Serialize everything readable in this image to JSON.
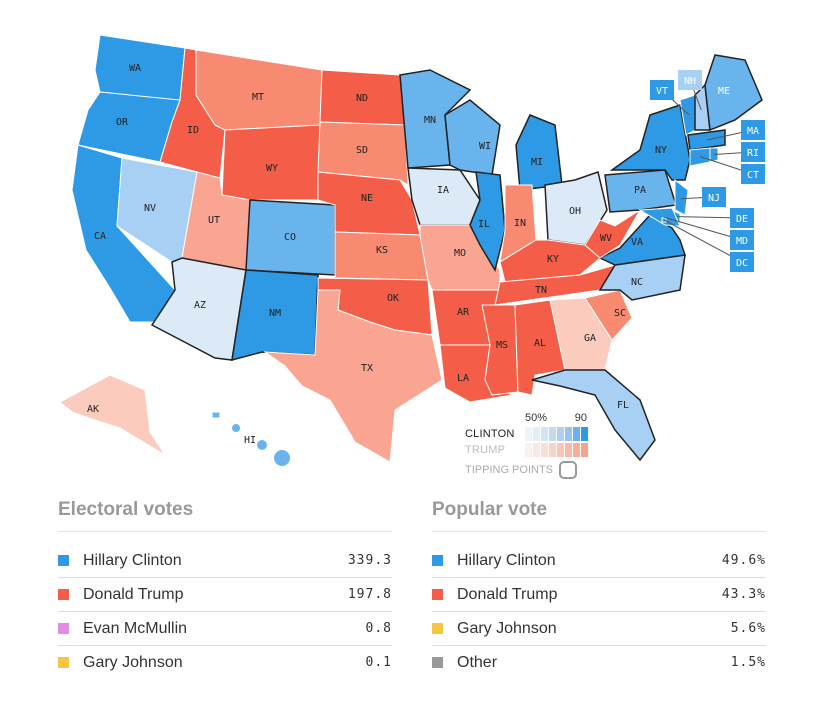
{
  "colors": {
    "D3": "#2E9AE6",
    "D2": "#6AB4EE",
    "D1": "#A8CFF4",
    "D0": "#DCEAF8",
    "R0": "#FBCBBE",
    "R1": "#F9A592",
    "R2": "#F78A70",
    "R3": "#F45E48"
  },
  "map": {
    "states": {
      "WA": "D3",
      "OR": "D3",
      "CA": "D3",
      "NV": "D1",
      "ID": "R3",
      "MT": "R2",
      "WY": "R3",
      "UT": "R1",
      "AZ": "D0",
      "CO": "D2",
      "NM": "D3",
      "ND": "R3",
      "SD": "R2",
      "NE": "R3",
      "KS": "R2",
      "OK": "R3",
      "TX": "R1",
      "MN": "D2",
      "IA": "D0",
      "MO": "R1",
      "AR": "R3",
      "LA": "R3",
      "WI": "D2",
      "IL": "D3",
      "MI": "D3",
      "IN": "R2",
      "OH": "D0",
      "KY": "R3",
      "TN": "R3",
      "MS": "R3",
      "AL": "R3",
      "GA": "R0",
      "FL": "D1",
      "SC": "R2",
      "NC": "D1",
      "VA": "D3",
      "WV": "R3",
      "PA": "D2",
      "NY": "D3",
      "VT": "D3",
      "NH": "D1",
      "ME": "D2",
      "MA": "D3",
      "CT": "D3",
      "RI": "D3",
      "NJ": "D3",
      "DE": "D3",
      "MD": "D3",
      "DC": "D3",
      "AK": "R0",
      "HI": "D2"
    }
  },
  "legend": {
    "scale_low": "50%",
    "scale_high": "90",
    "clinton": "CLINTON",
    "trump": "TRUMP",
    "tipping": "TIPPING POINTS",
    "clinton_cells": [
      "#EEF4FC",
      "#E2EDFA",
      "#D3E4F8",
      "#C2DBF5",
      "#AFD0F3",
      "#97C3F0",
      "#6FB0EC",
      "#2E9AE6"
    ],
    "trump_cells": [
      "#FEF0EC",
      "#FDE7E2",
      "#FCDCD4",
      "#FBD1C6",
      "#FAC5B8",
      "#F9B9A9",
      "#F8AD9B",
      "#F7A28E"
    ]
  },
  "electoral": {
    "title": "Electoral votes",
    "rows": [
      {
        "name": "Hillary Clinton",
        "value": "339.3",
        "color": "#2E9AE6"
      },
      {
        "name": "Donald Trump",
        "value": "197.8",
        "color": "#F45E48"
      },
      {
        "name": "Evan McMullin",
        "value": "0.8",
        "color": "#E28AE6"
      },
      {
        "name": "Gary Johnson",
        "value": "0.1",
        "color": "#F6C544"
      }
    ]
  },
  "popular": {
    "title": "Popular vote",
    "rows": [
      {
        "name": "Hillary Clinton",
        "value": "49.6%",
        "color": "#2E9AE6"
      },
      {
        "name": "Donald Trump",
        "value": "43.3%",
        "color": "#F45E48"
      },
      {
        "name": "Gary Johnson",
        "value": "5.6%",
        "color": "#F6C544"
      },
      {
        "name": "Other",
        "value": "1.5%",
        "color": "#999999"
      }
    ]
  }
}
